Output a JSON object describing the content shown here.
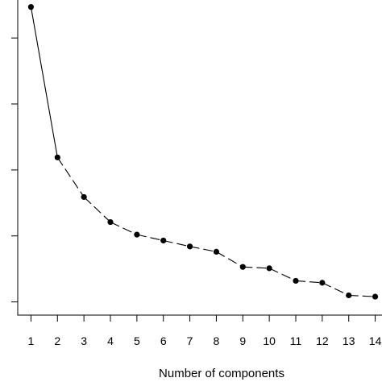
{
  "chart_data": {
    "type": "line",
    "title": "",
    "xlabel": "Number of components",
    "ylabel": "",
    "x": [
      1,
      2,
      3,
      4,
      5,
      6,
      7,
      8,
      9,
      10,
      11,
      12,
      13,
      14
    ],
    "x_tick_labels": [
      "1",
      "2",
      "3",
      "4",
      "5",
      "6",
      "7",
      "8",
      "9",
      "10",
      "11",
      "12",
      "13",
      "14"
    ],
    "series": [
      {
        "values": [
          4.47,
          2.19,
          1.59,
          1.21,
          1.02,
          0.93,
          0.84,
          0.76,
          0.53,
          0.51,
          0.32,
          0.29,
          0.1,
          0.08
        ]
      }
    ],
    "xlim": [
      0.5,
      14.5
    ],
    "ylim": [
      -0.2,
      4.6
    ],
    "y_ticks": [
      0,
      1,
      2,
      3,
      4
    ],
    "grid": false,
    "line_style": "dashed",
    "marker": "filled-circle",
    "color": "#000000"
  }
}
